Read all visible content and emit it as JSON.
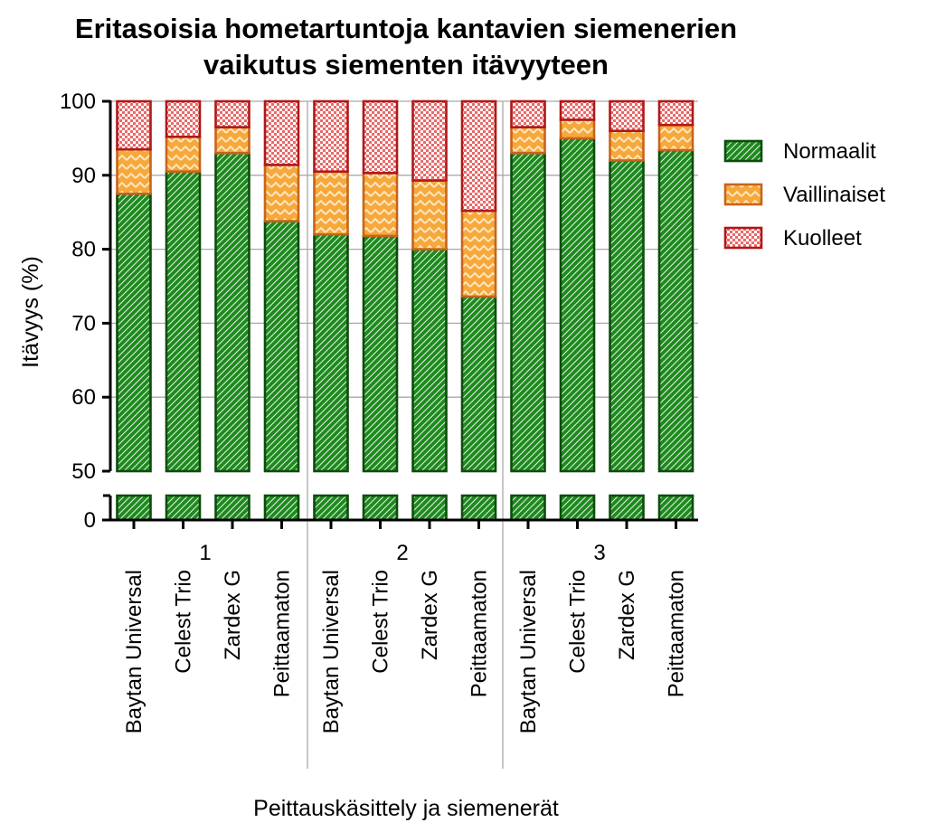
{
  "chart_data": {
    "type": "bar",
    "stacked": true,
    "title": [
      "Eritasoisia hometartuntoja kantavien siemenerien",
      "vaikutus siementen itävyyteen"
    ],
    "ylabel": "Itävyys (%)",
    "xlabel": "Peittauskäsittely ja siemenerät",
    "ylim": [
      0,
      100
    ],
    "y_axis_break": [
      0,
      50
    ],
    "yticks": [
      "0",
      "50",
      "60",
      "70",
      "80",
      "90",
      "100"
    ],
    "groups": [
      "1",
      "2",
      "3"
    ],
    "categories": [
      "Baytan Universal",
      "Celest Trio",
      "Zardex G",
      "Peittaamaton",
      "Baytan Universal",
      "Celest Trio",
      "Zardex G",
      "Peittaamaton",
      "Baytan Universal",
      "Celest Trio",
      "Zardex G",
      "Peittaamaton"
    ],
    "series": [
      {
        "name": "Normaalit",
        "color": "#1e8a1e",
        "edge": "#0d4d0d",
        "pattern": "diagonal",
        "values": [
          87.5,
          90.5,
          93.0,
          83.8,
          82.0,
          81.8,
          80.0,
          73.6,
          93.0,
          95.0,
          92.0,
          93.4
        ]
      },
      {
        "name": "Vaillinaiset",
        "color": "#f6a83a",
        "edge": "#c8641a",
        "pattern": "zigzag",
        "values": [
          6.0,
          4.7,
          3.5,
          7.6,
          8.5,
          8.5,
          9.3,
          11.6,
          3.5,
          2.5,
          4.0,
          3.4
        ]
      },
      {
        "name": "Kuolleet",
        "color": "#e86a6a",
        "edge": "#b01818",
        "pattern": "checker",
        "values": [
          6.5,
          4.8,
          3.5,
          8.6,
          9.5,
          9.7,
          10.7,
          14.8,
          3.5,
          2.5,
          4.0,
          3.2
        ]
      }
    ],
    "legend_position": "right",
    "grid": "horizontal"
  }
}
